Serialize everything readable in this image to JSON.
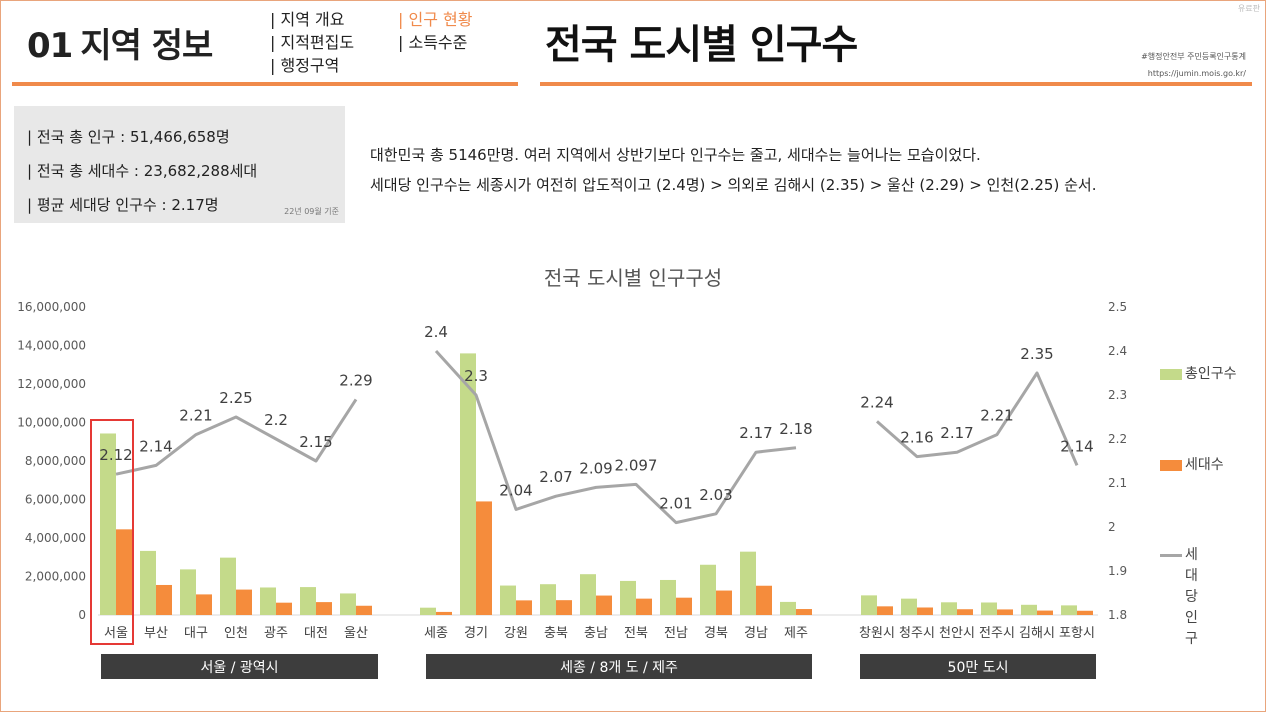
{
  "header": {
    "section_num": "01",
    "section_title": "지역 정보",
    "nav_left": [
      "| 지역 개요",
      "| 지적편집도",
      "| 행정구역"
    ],
    "nav_right": [
      "| 인구 현황",
      "| 소득수준"
    ],
    "active_nav": "| 인구 현황",
    "main_title": "전국 도시별 인구수",
    "source_1": "#행정안전부 주민등록인구통계",
    "source_2": "https://jumin.mois.go.kr/",
    "watermark": "유료판"
  },
  "infobox": {
    "lines": [
      "| 전국 총 인구 :  51,466,658명",
      "| 전국 총 세대수 : 23,682,288세대",
      "| 평균 세대당 인구수 : 2.17명"
    ],
    "note": "22년 09월 기준"
  },
  "summary": [
    "대한민국 총 5146만명.  여러 지역에서 상반기보다 인구수는 줄고, 세대수는 늘어나는 모습이었다.",
    "세대당 인구수는 세종시가 여전히 압도적이고 (2.4명) >  의외로 김해시 (2.35) > 울산 (2.29) > 인천(2.25) 순서."
  ],
  "colors": {
    "accent": "#f08a4b",
    "pop_bar": "#c4da8a",
    "hh_bar": "#f58c3c",
    "line": "#a6a6a6",
    "group_bar": "#3d3d3d",
    "highlight": "#e53935"
  },
  "chart_data": {
    "type": "bar",
    "title": "전국 도시별 인구구성",
    "y_left_ticks": [
      "0",
      "2,000,000",
      "4,000,000",
      "6,000,000",
      "8,000,000",
      "10,000,000",
      "12,000,000",
      "14,000,000",
      "16,000,000"
    ],
    "y_left_range": [
      0,
      16000000
    ],
    "y_right_ticks": [
      "1.8",
      "1.9",
      "2",
      "2.1",
      "2.2",
      "2.3",
      "2.4",
      "2.5"
    ],
    "y_right_range": [
      1.8,
      2.5
    ],
    "legend": [
      "총인구수",
      "세대수",
      "세대당\n인구"
    ],
    "groups": [
      {
        "label": "서울 / 광역시",
        "categories": [
          "서울",
          "부산",
          "대구",
          "인천",
          "광주",
          "대전",
          "울산"
        ],
        "population": [
          9430000,
          3330000,
          2370000,
          2980000,
          1430000,
          1450000,
          1120000
        ],
        "households": [
          4450000,
          1560000,
          1070000,
          1320000,
          640000,
          670000,
          480000
        ],
        "per_household": [
          2.12,
          2.14,
          2.21,
          2.25,
          2.2,
          2.15,
          2.29
        ],
        "per_household_labels": [
          "2.12",
          "2.14",
          "2.21",
          "2.25",
          "2.2",
          "2.15",
          "2.29"
        ]
      },
      {
        "label": "세종 / 8개 도 / 제주",
        "categories": [
          "세종",
          "경기",
          "강원",
          "충북",
          "충남",
          "전북",
          "전남",
          "경북",
          "경남",
          "제주"
        ],
        "population": [
          380000,
          13590000,
          1530000,
          1600000,
          2120000,
          1770000,
          1820000,
          2610000,
          3290000,
          680000
        ],
        "households": [
          160000,
          5900000,
          760000,
          770000,
          1010000,
          850000,
          900000,
          1270000,
          1520000,
          310000
        ],
        "per_household": [
          2.4,
          2.3,
          2.04,
          2.07,
          2.09,
          2.097,
          2.01,
          2.03,
          2.17,
          2.18
        ],
        "per_household_labels": [
          "2.4",
          "2.3",
          "2.04",
          "2.07",
          "2.09",
          "2.097",
          "2.01",
          "2.03",
          "2.17",
          "2.18"
        ]
      },
      {
        "label": "50만 도시",
        "categories": [
          "창원시",
          "청주시",
          "천안시",
          "전주시",
          "김해시",
          "포항시"
        ],
        "population": [
          1020000,
          850000,
          660000,
          650000,
          530000,
          500000
        ],
        "households": [
          450000,
          390000,
          300000,
          290000,
          230000,
          220000
        ],
        "per_household": [
          2.24,
          2.16,
          2.17,
          2.21,
          2.35,
          2.14
        ],
        "per_household_labels": [
          "2.24",
          "2.16",
          "2.17",
          "2.21",
          "2.35",
          "2.14"
        ]
      }
    ]
  }
}
